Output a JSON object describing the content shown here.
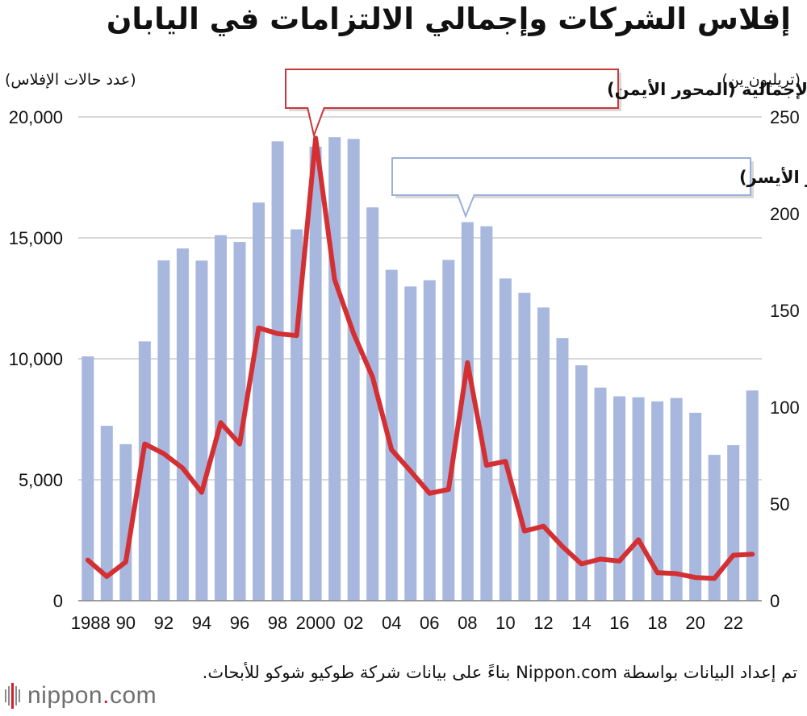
{
  "title": "إفلاس الشركات وإجمالي الالتزامات في اليابان",
  "source": "تم إعداد البيانات بواسطة Nippon.com بناءً على بيانات شركة طوكيو شوكو للأبحاث.",
  "logo": {
    "word": "nippon",
    "dot": ".",
    "suffix": "com"
  },
  "colors": {
    "bars": "#a7b7de",
    "line": "#d42f32",
    "grid": "#cccccc",
    "callout_red_border": "#c8373a",
    "callout_blue_border": "#9ab0d8"
  },
  "chart_data": {
    "type": "bar",
    "combo": "bar+line (dual axis)",
    "years": [
      1988,
      1989,
      1990,
      1991,
      1992,
      1993,
      1994,
      1995,
      1996,
      1997,
      1998,
      1999,
      2000,
      2001,
      2002,
      2003,
      2004,
      2005,
      2006,
      2007,
      2008,
      2009,
      2010,
      2011,
      2012,
      2013,
      2014,
      2015,
      2016,
      2017,
      2018,
      2019,
      2020,
      2021,
      2022,
      2023
    ],
    "x_tick_labels": [
      "1988",
      "90",
      "92",
      "94",
      "96",
      "98",
      "2000",
      "02",
      "04",
      "06",
      "08",
      "10",
      "12",
      "14",
      "16",
      "18",
      "20",
      "22"
    ],
    "left_axis": {
      "label": "(عدد حالات الإفلاس)",
      "range": [
        0,
        20000
      ],
      "ticks": [
        "0",
        "5,000",
        "10,000",
        "15,000",
        "20,000"
      ]
    },
    "right_axis": {
      "label": "(تريليون ين)",
      "range": [
        0,
        250
      ],
      "ticks": [
        "0",
        "50",
        "100",
        "150",
        "200",
        "250"
      ]
    },
    "series": [
      {
        "name": "إجمالي حالات الإفلاس (المحور الأيسر)",
        "kind": "bar",
        "axis": "left",
        "values": [
          10100,
          7230,
          6470,
          10720,
          14070,
          14560,
          14060,
          15110,
          14830,
          16460,
          18990,
          15350,
          18770,
          19160,
          19090,
          16260,
          13680,
          12990,
          13250,
          14090,
          15650,
          15480,
          13320,
          12730,
          12120,
          10860,
          9730,
          8810,
          8450,
          8410,
          8240,
          8380,
          7770,
          6030,
          6430,
          8690
        ]
      },
      {
        "name": "الالتزامات الإجمالية (المحور الأيمن)",
        "kind": "line",
        "axis": "right",
        "values": [
          21.0,
          12.5,
          20.0,
          81.0,
          76.0,
          68.5,
          56.0,
          92.0,
          81.0,
          141.0,
          138.0,
          137.0,
          239.0,
          166.0,
          138.0,
          115.5,
          78.0,
          67.0,
          55.5,
          57.5,
          123.0,
          70.0,
          72.0,
          36.0,
          38.5,
          28.0,
          19.0,
          21.5,
          20.5,
          31.5,
          14.5,
          14.0,
          12.0,
          11.5,
          23.5,
          24.0
        ]
      }
    ],
    "grid": "horizontal",
    "legend": "callout labels"
  }
}
